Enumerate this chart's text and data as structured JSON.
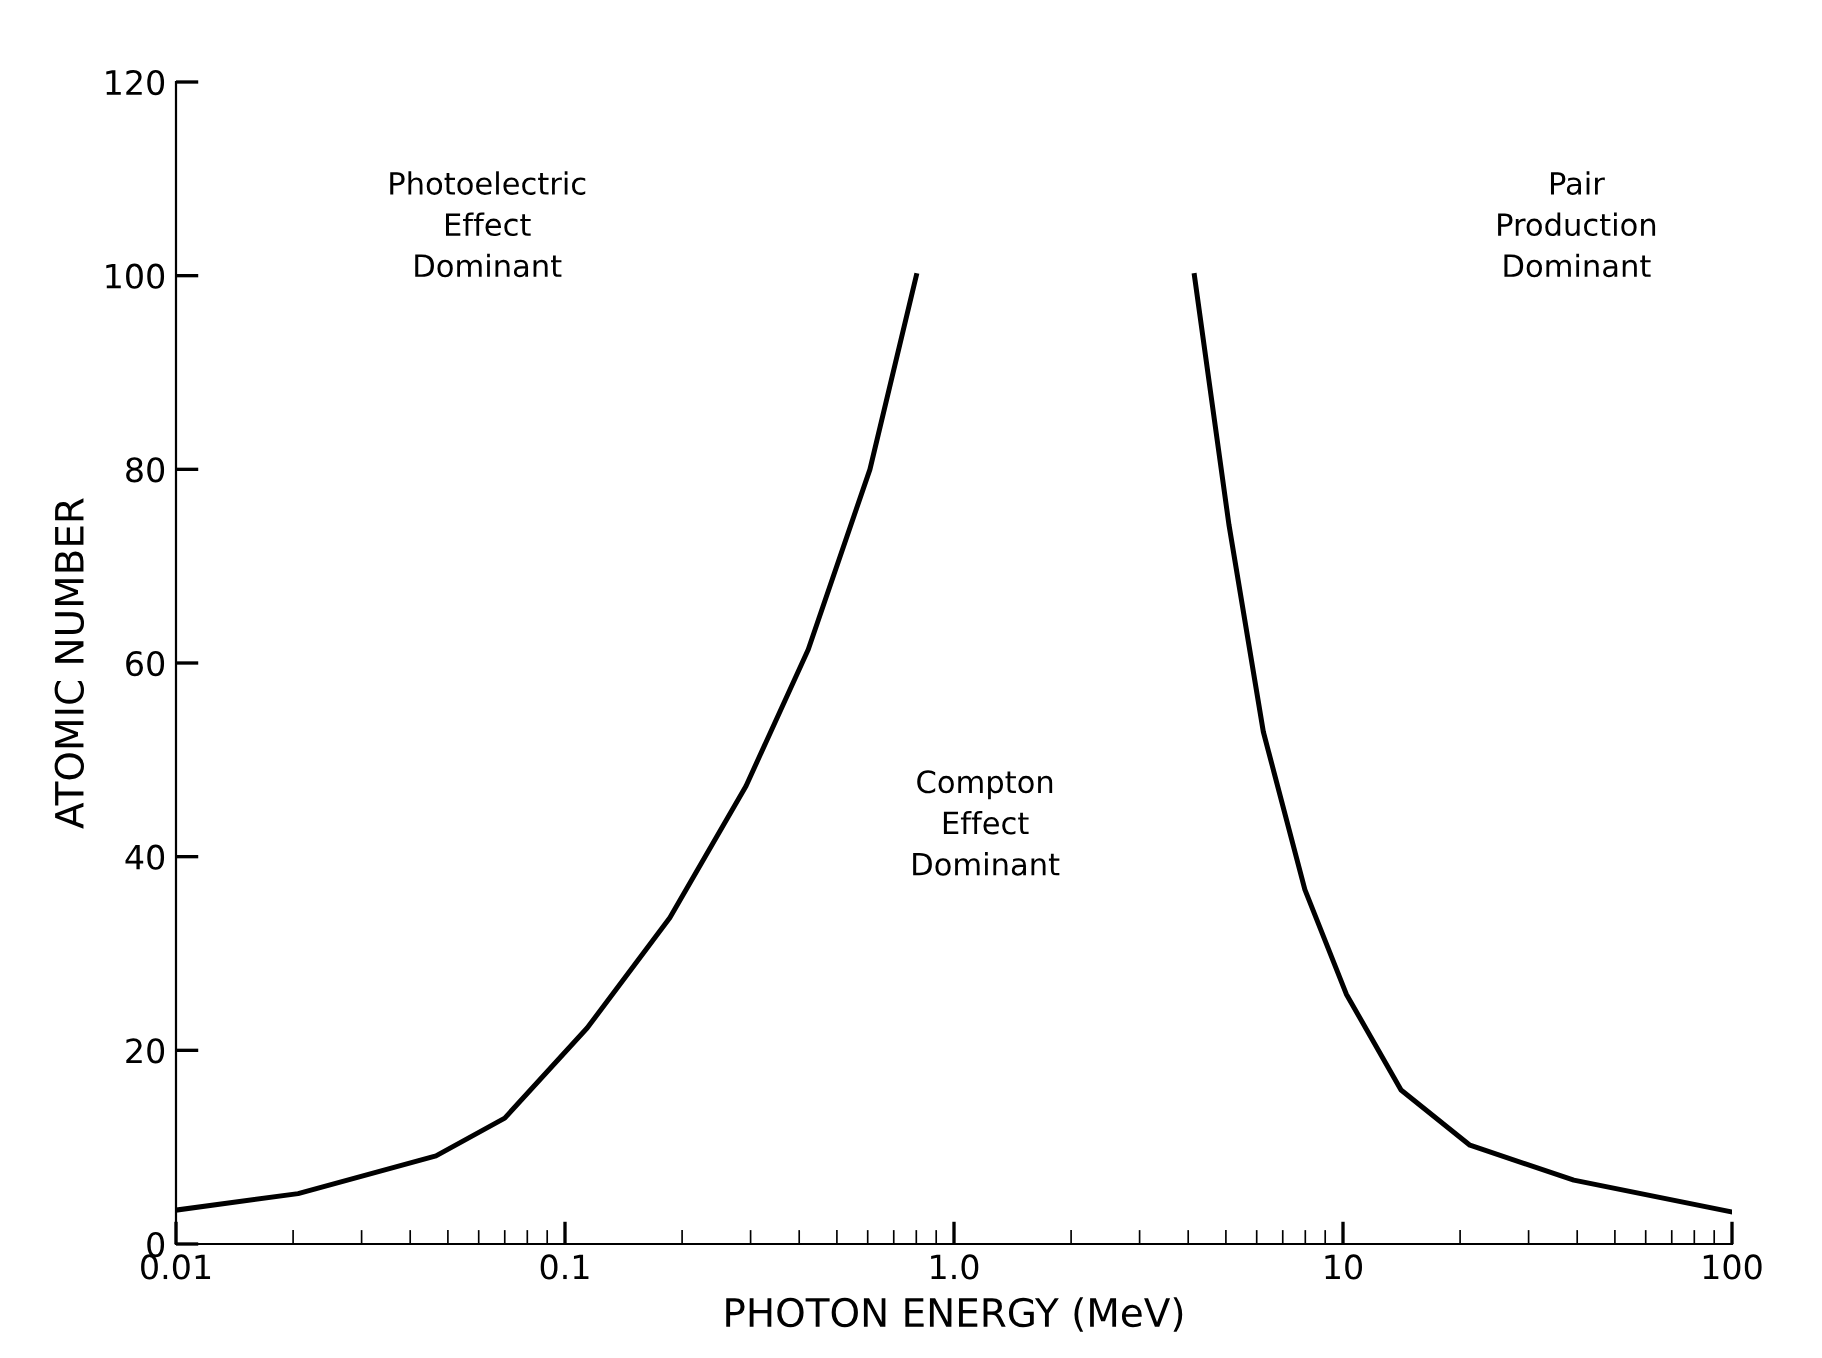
{
  "chart_data": {
    "type": "line",
    "xlabel": "PHOTON ENERGY (MeV)",
    "ylabel": "ATOMIC NUMBER",
    "log": "x",
    "xlim": [
      0.01,
      100
    ],
    "ylim": [
      0,
      120
    ],
    "xticks": [
      {
        "value": 0.01,
        "label": "0.01"
      },
      {
        "value": 0.1,
        "label": "0.1"
      },
      {
        "value": 1,
        "label": "1.0"
      },
      {
        "value": 10,
        "label": "10"
      },
      {
        "value": 100,
        "label": "100"
      }
    ],
    "yticks": [
      0,
      20,
      40,
      60,
      80,
      100,
      120
    ],
    "marker": "none",
    "line_style": "solid",
    "series": [
      {
        "color": "#000000",
        "x": [
          0.01,
          0.0206,
          0.0466,
          0.07,
          0.114,
          0.186,
          0.292,
          0.422,
          0.608,
          0.8
        ],
        "values": [
          3.5,
          5.2,
          9.1,
          13,
          22.3,
          33.7,
          47.3,
          61.4,
          80,
          100
        ]
      },
      {
        "color": "#000000",
        "x": [
          4.15,
          5.09,
          6.24,
          7.98,
          10.2,
          14.1,
          21.2,
          39.2,
          100
        ],
        "values": [
          100,
          74.3,
          52.9,
          36.6,
          25.8,
          15.9,
          10.2,
          6.6,
          3.3
        ]
      }
    ],
    "annotations": [
      "Photoelectric\nEffect\nDominant",
      "Compton\nEffect\nDominant",
      "Pair\nProduction\nDominant"
    ]
  }
}
